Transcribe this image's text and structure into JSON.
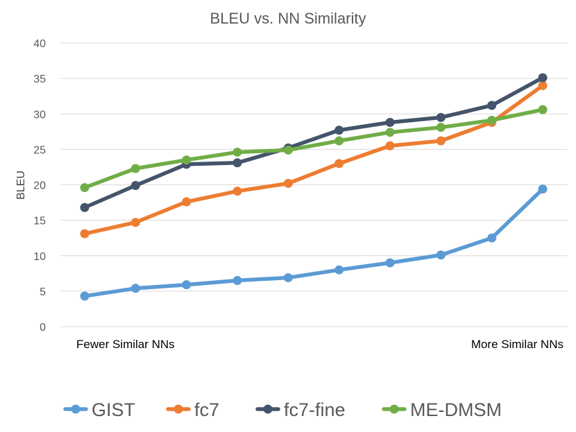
{
  "chart_data": {
    "type": "line",
    "title": "BLEU vs. NN Similarity",
    "ylabel": "BLEU",
    "x_start_label": "Fewer Similar NNs",
    "x_end_label": "More Similar NNs",
    "ylim": [
      0,
      40
    ],
    "y_ticks": [
      0,
      5,
      10,
      15,
      20,
      25,
      30,
      35,
      40
    ],
    "grid": true,
    "legend_position": "bottom",
    "x": [
      1,
      2,
      3,
      4,
      5,
      6,
      7,
      8,
      9,
      10
    ],
    "series": [
      {
        "name": "GIST",
        "color": "#5B9BD5",
        "values": [
          4.3,
          5.4,
          5.9,
          6.5,
          6.9,
          8.0,
          9.0,
          10.1,
          12.5,
          19.4
        ]
      },
      {
        "name": "fc7",
        "color": "#ED7D31",
        "values": [
          13.1,
          14.7,
          17.6,
          19.1,
          20.2,
          23.0,
          25.5,
          26.2,
          28.8,
          34.0
        ]
      },
      {
        "name": "fc7-fine",
        "color": "#44546A",
        "values": [
          16.8,
          19.9,
          22.9,
          23.1,
          25.2,
          27.7,
          28.8,
          29.5,
          31.2,
          35.1
        ]
      },
      {
        "name": "ME-DMSM",
        "color": "#70AD47",
        "values": [
          19.6,
          22.3,
          23.5,
          24.6,
          24.9,
          26.2,
          27.4,
          28.1,
          29.1,
          30.6
        ]
      }
    ]
  }
}
